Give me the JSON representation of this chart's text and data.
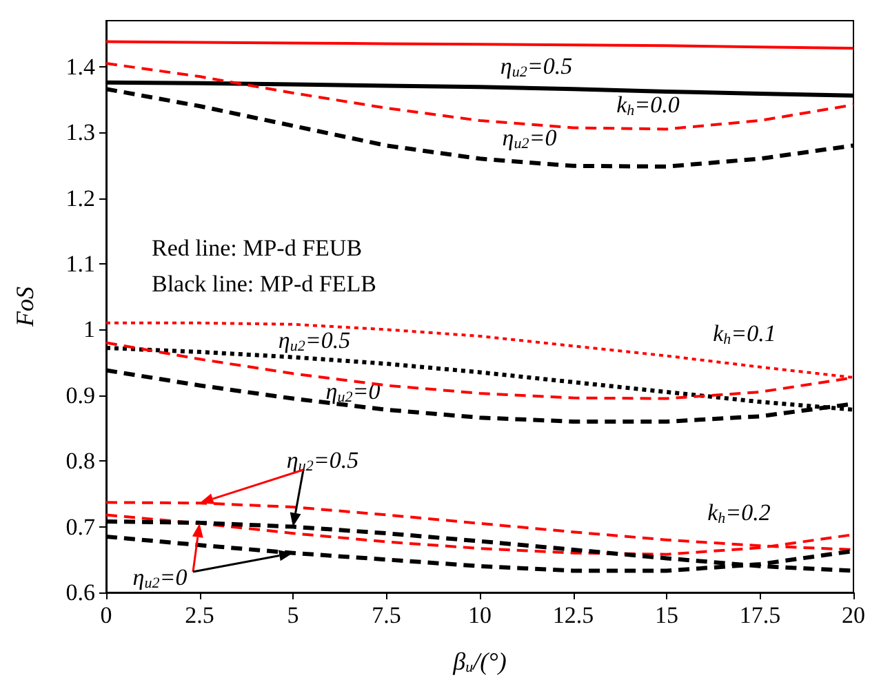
{
  "chart_data": {
    "type": "line",
    "xlabel": "β$_{u}$/(°)",
    "ylabel": "FoS",
    "x": [
      0,
      2.5,
      5,
      7.5,
      10,
      12.5,
      15,
      17.5,
      20
    ],
    "xlim": [
      0,
      20
    ],
    "xticks": [
      0,
      2.5,
      5,
      7.5,
      10,
      12.5,
      15,
      17.5,
      20
    ],
    "ylim": [
      0.6,
      1.47
    ],
    "yticks": [
      0.6,
      0.7,
      0.8,
      0.9,
      1,
      1.1,
      1.2,
      1.3,
      1.4
    ],
    "grid": false,
    "marker": "none",
    "series": [
      {
        "color": "#ff0000",
        "line_style": "solid",
        "values": [
          1.438,
          1.437,
          1.436,
          1.435,
          1.434,
          1.433,
          1.432,
          1.43,
          1.428
        ]
      },
      {
        "color": "#000000",
        "line_style": "solid",
        "values": [
          1.376,
          1.375,
          1.373,
          1.371,
          1.369,
          1.366,
          1.362,
          1.359,
          1.356
        ]
      },
      {
        "color": "#ff0000",
        "line_style": "dashed",
        "values": [
          1.405,
          1.385,
          1.36,
          1.337,
          1.318,
          1.307,
          1.305,
          1.318,
          1.342
        ]
      },
      {
        "color": "#000000",
        "line_style": "dashed",
        "values": [
          1.366,
          1.34,
          1.31,
          1.28,
          1.26,
          1.249,
          1.248,
          1.26,
          1.28
        ]
      },
      {
        "color": "#ff0000",
        "line_style": "dotted",
        "values": [
          1.01,
          1.01,
          1.008,
          1.0,
          0.99,
          0.975,
          0.96,
          0.943,
          0.927
        ]
      },
      {
        "color": "#000000",
        "line_style": "dotted",
        "values": [
          0.972,
          0.966,
          0.958,
          0.948,
          0.935,
          0.92,
          0.905,
          0.89,
          0.878
        ]
      },
      {
        "color": "#ff0000",
        "line_style": "dashed",
        "values": [
          0.98,
          0.955,
          0.933,
          0.915,
          0.903,
          0.896,
          0.895,
          0.905,
          0.927
        ]
      },
      {
        "color": "#000000",
        "line_style": "dashed",
        "values": [
          0.938,
          0.915,
          0.895,
          0.878,
          0.866,
          0.86,
          0.86,
          0.868,
          0.887
        ]
      },
      {
        "color": "#ff0000",
        "line_style": "dashed",
        "values": [
          0.737,
          0.736,
          0.73,
          0.718,
          0.705,
          0.692,
          0.68,
          0.671,
          0.665
        ]
      },
      {
        "color": "#ff0000",
        "line_style": "dashed",
        "values": [
          0.718,
          0.705,
          0.69,
          0.677,
          0.667,
          0.66,
          0.658,
          0.668,
          0.688
        ]
      },
      {
        "color": "#000000",
        "line_style": "dashed",
        "values": [
          0.708,
          0.706,
          0.7,
          0.69,
          0.678,
          0.665,
          0.652,
          0.64,
          0.633
        ]
      },
      {
        "color": "#000000",
        "line_style": "dashed",
        "values": [
          0.685,
          0.672,
          0.66,
          0.65,
          0.64,
          0.633,
          0.633,
          0.643,
          0.663
        ]
      }
    ],
    "annotations": [
      "Red line: MP-d FEUB",
      "Black line: MP-d FELB",
      "η$_{u2}$=0.5",
      "k$_{h}$=0.0",
      "η$_{u2}$=0",
      "k$_{h}$=0.1",
      "η$_{u2}$=0.5",
      "η$_{u2}$=0",
      {
        "text": "η$_{u2}$=0.5",
        "x": 5,
        "y": 0.7
      },
      "k$_{h}$=0.2",
      {
        "text": "η$_{u2}$=0",
        "x": 2.5,
        "y": 0.705
      }
    ]
  }
}
